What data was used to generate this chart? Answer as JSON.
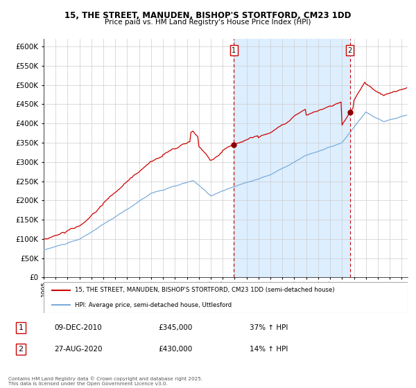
{
  "title_line1": "15, THE STREET, MANUDEN, BISHOP'S STORTFORD, CM23 1DD",
  "title_line2": "Price paid vs. HM Land Registry's House Price Index (HPI)",
  "ylim": [
    0,
    620000
  ],
  "yticks": [
    0,
    50000,
    100000,
    150000,
    200000,
    250000,
    300000,
    350000,
    400000,
    450000,
    500000,
    550000,
    600000
  ],
  "xlim": [
    1995.0,
    2025.5
  ],
  "red_line_color": "#cc0000",
  "blue_line_color": "#7aacda",
  "shaded_color": "#ddeeff",
  "marker_color": "#8b0000",
  "dashed_line_color": "#cc0000",
  "sale1_date_x": 2010.93,
  "sale1_price": 345000,
  "sale2_date_x": 2020.66,
  "sale2_price": 430000,
  "legend_label1": "15, THE STREET, MANUDEN, BISHOP'S STORTFORD, CM23 1DD (semi-detached house)",
  "legend_label2": "HPI: Average price, semi-detached house, Uttlesford",
  "table_row1": [
    "1",
    "09-DEC-2010",
    "£345,000",
    "37% ↑ HPI"
  ],
  "table_row2": [
    "2",
    "27-AUG-2020",
    "£430,000",
    "14% ↑ HPI"
  ],
  "footnote": "Contains HM Land Registry data © Crown copyright and database right 2025.\nThis data is licensed under the Open Government Licence v3.0.",
  "plot_bg_color": "#ffffff",
  "grid_color": "#cccccc"
}
